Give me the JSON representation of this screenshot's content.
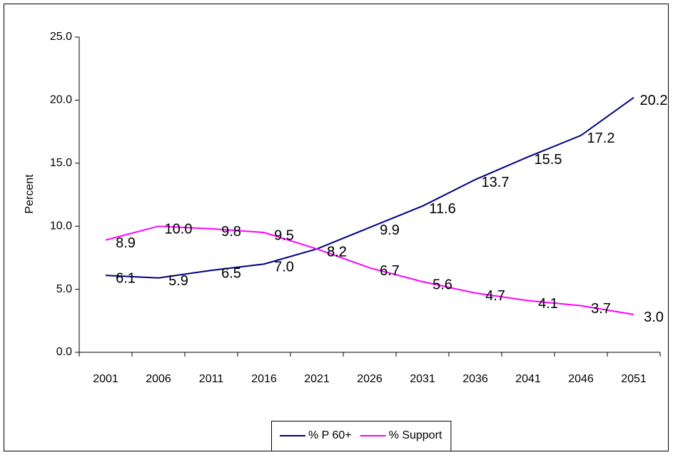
{
  "chart_data": {
    "type": "line",
    "y_label": "Percent",
    "categories": [
      "2001",
      "2006",
      "2011",
      "2016",
      "2021",
      "2026",
      "2031",
      "2036",
      "2041",
      "2046",
      "2051"
    ],
    "series": [
      {
        "name": "% P 60+",
        "color": "#000080",
        "values": [
          6.1,
          5.9,
          6.5,
          7.0,
          8.2,
          9.9,
          11.6,
          13.7,
          15.5,
          17.2,
          20.2
        ],
        "value_labels": [
          "6.1",
          "5.9",
          "6.5",
          "7.0",
          "8.2",
          "9.9",
          "11.6",
          "13.7",
          "15.5",
          "17.2",
          "20.2"
        ]
      },
      {
        "name": "% Support",
        "color": "#ff00ff",
        "values": [
          8.9,
          10.0,
          9.8,
          9.5,
          8.2,
          6.7,
          5.6,
          4.7,
          4.1,
          3.7,
          3.0
        ],
        "value_labels": [
          "8.9",
          "10.0",
          "9.8",
          "9.5",
          "8.2",
          "6.7",
          "5.6",
          "4.7",
          "4.1",
          "3.7",
          "3.0"
        ]
      }
    ],
    "ylim": [
      0,
      25
    ],
    "yticks": [
      {
        "value": 0,
        "label": "0.0"
      },
      {
        "value": 5,
        "label": "5.0"
      },
      {
        "value": 10,
        "label": "10.0"
      },
      {
        "value": 15,
        "label": "15.0"
      },
      {
        "value": 20,
        "label": "20.0"
      },
      {
        "value": 25,
        "label": "25.0"
      }
    ],
    "grid": false,
    "legend": "bottom"
  }
}
